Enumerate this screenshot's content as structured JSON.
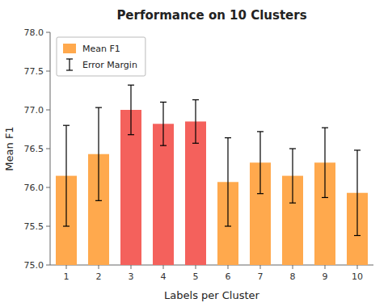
{
  "chart_data": {
    "type": "bar",
    "title": "Performance on 10 Clusters",
    "xlabel": "Labels per Cluster",
    "ylabel": "Mean F1",
    "categories": [
      1,
      2,
      3,
      4,
      5,
      6,
      7,
      8,
      9,
      10
    ],
    "series": [
      {
        "name": "Mean F1",
        "color": "#FFA94D",
        "colors": [
          "#FFA94D",
          "#FFA94D",
          "#F4615C",
          "#F4615C",
          "#F4615C",
          "#FFA94D",
          "#FFA94D",
          "#FFA94D",
          "#FFA94D",
          "#FFA94D"
        ],
        "values": [
          76.15,
          76.43,
          77.0,
          76.82,
          76.85,
          76.07,
          76.32,
          76.15,
          76.32,
          75.93
        ],
        "errors": [
          0.65,
          0.6,
          0.32,
          0.28,
          0.28,
          0.57,
          0.4,
          0.35,
          0.45,
          0.55
        ],
        "error_label": "Error Margin"
      }
    ],
    "ylim": [
      75.0,
      78.0
    ],
    "yticks": [
      {
        "value": 75,
        "label": "75.0"
      },
      75.5,
      {
        "value": 76,
        "label": "76.0"
      },
      76.5,
      {
        "value": 77,
        "label": "77.0"
      },
      77.5,
      {
        "value": 78,
        "label": "78.0"
      }
    ],
    "legend": "upper left"
  }
}
